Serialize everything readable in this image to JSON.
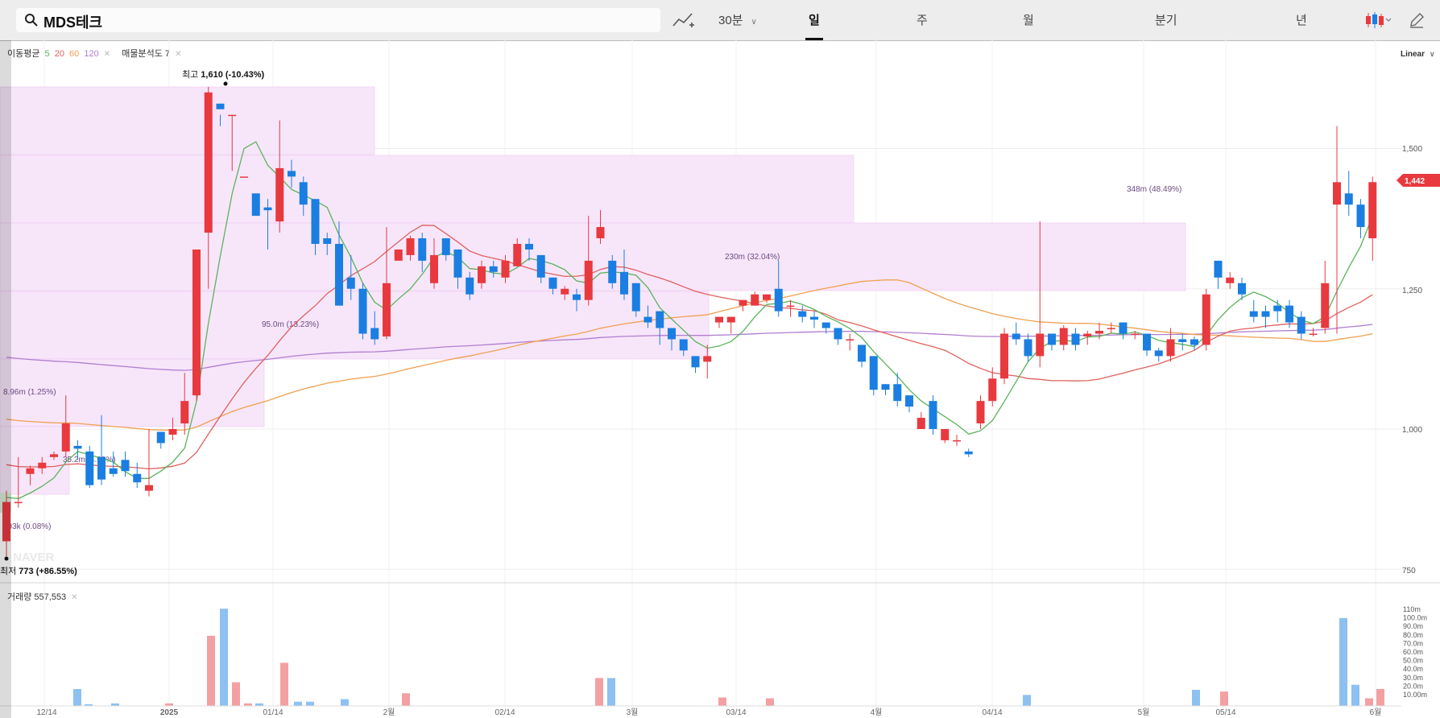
{
  "search": {
    "symbol": "MDS테크"
  },
  "intervals": [
    {
      "label": "30분",
      "active": false
    },
    {
      "label": "일",
      "active": true
    },
    {
      "label": "주",
      "active": false
    },
    {
      "label": "월",
      "active": false
    },
    {
      "label": "분기",
      "active": false
    },
    {
      "label": "년",
      "active": false
    }
  ],
  "indicators": {
    "ma_label": "이동평균",
    "ma_periods": [
      "5",
      "20",
      "60",
      "120"
    ],
    "volume_profile_label": "매물분석도 7",
    "volume_label": "거래량 557,553"
  },
  "scale_mode": "Linear",
  "colors": {
    "up": "#e8393f",
    "down": "#1a7ee2",
    "ma5": "#5bb35b",
    "ma20": "#e0605d",
    "ma60": "#f0a050",
    "ma120": "#b07ed0",
    "profile": "#f7e6fa",
    "vol_up": "#f3a0a3",
    "vol_down": "#8cc1f1"
  },
  "chart_data": {
    "type": "candlestick",
    "x_ticks": [
      "12/14",
      "2025",
      "01/14",
      "2월",
      "02/14",
      "3월",
      "03/14",
      "4월",
      "04/14",
      "5월",
      "05/14",
      "6월"
    ],
    "y_ticks": [
      "1,500",
      "1,250",
      "1,000",
      "750"
    ],
    "last_price": "1,442",
    "high_annotation": {
      "prefix": "최고",
      "value": "1,610",
      "change": "(-10.43%)"
    },
    "low_annotation": {
      "prefix": "최저",
      "value": "773",
      "change": "(+86.55%)"
    },
    "volume_profile_labels": [
      "8.96m (1.25%)",
      "35.2m (4.90%)",
      "95.0m (13.23%)",
      "230m (32.04%)",
      "348m (48.49%)",
      "593k (0.08%)"
    ],
    "volume_ticks": [
      "110m",
      "100.0m",
      "90.0m",
      "80.0m",
      "70.0m",
      "60.0m",
      "50.0m",
      "40.0m",
      "30.0m",
      "20.0m",
      "10.00m"
    ],
    "watermark": "NAVER",
    "candles": [
      [
        800,
        870,
        890,
        773
      ],
      [
        870,
        870,
        950,
        860
      ],
      [
        920,
        930,
        935,
        900
      ],
      [
        930,
        940,
        950,
        920
      ],
      [
        950,
        955,
        960,
        945
      ],
      [
        960,
        1010,
        1060,
        950
      ],
      [
        970,
        965,
        980,
        945
      ],
      [
        960,
        900,
        970,
        895
      ],
      [
        950,
        910,
        1025,
        900
      ],
      [
        930,
        920,
        960,
        915
      ],
      [
        945,
        925,
        960,
        915
      ],
      [
        920,
        905,
        940,
        895
      ],
      [
        890,
        900,
        1000,
        880
      ],
      [
        995,
        975,
        985,
        965
      ],
      [
        990,
        1000,
        1020,
        980
      ],
      [
        1010,
        1050,
        1100,
        990
      ],
      [
        1060,
        1320,
        1320,
        1050
      ],
      [
        1350,
        1600,
        1610,
        1250
      ],
      [
        1580,
        1570,
        1540,
        1560
      ],
      [
        1560,
        1560,
        1560,
        1460
      ],
      [
        1450,
        1450,
        1450,
        1450
      ],
      [
        1420,
        1380,
        1420,
        1390
      ],
      [
        1395,
        1390,
        1410,
        1320
      ],
      [
        1370,
        1465,
        1550,
        1350
      ],
      [
        1460,
        1450,
        1480,
        1430
      ],
      [
        1440,
        1400,
        1450,
        1380
      ],
      [
        1410,
        1330,
        1410,
        1310
      ],
      [
        1340,
        1330,
        1350,
        1310
      ],
      [
        1330,
        1220,
        1370,
        1220
      ],
      [
        1270,
        1250,
        1310,
        1230
      ],
      [
        1250,
        1170,
        1260,
        1160
      ],
      [
        1180,
        1160,
        1210,
        1150
      ],
      [
        1165,
        1260,
        1360,
        1160
      ],
      [
        1300,
        1320,
        1320,
        1310
      ],
      [
        1310,
        1340,
        1345,
        1300
      ],
      [
        1340,
        1300,
        1350,
        1280
      ],
      [
        1260,
        1310,
        1340,
        1250
      ],
      [
        1340,
        1310,
        1340,
        1300
      ],
      [
        1320,
        1270,
        1320,
        1250
      ],
      [
        1270,
        1240,
        1280,
        1230
      ],
      [
        1260,
        1290,
        1300,
        1250
      ],
      [
        1290,
        1280,
        1300,
        1270
      ],
      [
        1270,
        1300,
        1310,
        1260
      ],
      [
        1290,
        1330,
        1340,
        1290
      ],
      [
        1330,
        1320,
        1340,
        1300
      ],
      [
        1310,
        1270,
        1310,
        1260
      ],
      [
        1270,
        1250,
        1270,
        1240
      ],
      [
        1240,
        1250,
        1255,
        1230
      ],
      [
        1240,
        1230,
        1250,
        1210
      ],
      [
        1230,
        1300,
        1380,
        1220
      ],
      [
        1340,
        1360,
        1390,
        1330
      ],
      [
        1300,
        1260,
        1310,
        1250
      ],
      [
        1280,
        1240,
        1320,
        1230
      ],
      [
        1260,
        1210,
        1260,
        1200
      ],
      [
        1200,
        1190,
        1220,
        1180
      ],
      [
        1210,
        1180,
        1210,
        1150
      ],
      [
        1180,
        1160,
        1180,
        1140
      ],
      [
        1160,
        1140,
        1160,
        1130
      ],
      [
        1130,
        1110,
        1130,
        1100
      ],
      [
        1120,
        1130,
        1150,
        1090
      ],
      [
        1190,
        1200,
        1200,
        1180
      ],
      [
        1190,
        1200,
        1200,
        1170
      ],
      [
        1220,
        1230,
        1230,
        1210
      ],
      [
        1220,
        1240,
        1245,
        1220
      ],
      [
        1230,
        1240,
        1240,
        1225
      ],
      [
        1250,
        1210,
        1300,
        1200
      ],
      [
        1220,
        1220,
        1230,
        1200
      ],
      [
        1210,
        1200,
        1220,
        1190
      ],
      [
        1200,
        1195,
        1210,
        1180
      ],
      [
        1190,
        1180,
        1190,
        1170
      ],
      [
        1180,
        1160,
        1180,
        1150
      ],
      [
        1160,
        1160,
        1170,
        1140
      ],
      [
        1150,
        1120,
        1150,
        1110
      ],
      [
        1130,
        1070,
        1130,
        1060
      ],
      [
        1080,
        1070,
        1080,
        1060
      ],
      [
        1080,
        1050,
        1100,
        1040
      ],
      [
        1060,
        1040,
        1060,
        1030
      ],
      [
        1000,
        1020,
        1030,
        1000
      ],
      [
        1050,
        1000,
        1060,
        990
      ],
      [
        980,
        1000,
        1000,
        975
      ],
      [
        980,
        980,
        990,
        970
      ],
      [
        960,
        955,
        965,
        950
      ],
      [
        1010,
        1050,
        1060,
        1000
      ],
      [
        1050,
        1090,
        1110,
        1040
      ],
      [
        1090,
        1170,
        1180,
        1080
      ],
      [
        1170,
        1160,
        1190,
        1150
      ],
      [
        1160,
        1130,
        1170,
        1120
      ],
      [
        1130,
        1170,
        1370,
        1110
      ],
      [
        1170,
        1150,
        1170,
        1140
      ],
      [
        1150,
        1180,
        1185,
        1140
      ],
      [
        1170,
        1150,
        1180,
        1140
      ],
      [
        1165,
        1170,
        1175,
        1150
      ],
      [
        1170,
        1175,
        1190,
        1160
      ],
      [
        1180,
        1180,
        1190,
        1170
      ],
      [
        1190,
        1170,
        1190,
        1160
      ],
      [
        1170,
        1170,
        1175,
        1160
      ],
      [
        1170,
        1140,
        1170,
        1130
      ],
      [
        1140,
        1130,
        1145,
        1120
      ],
      [
        1130,
        1160,
        1180,
        1120
      ],
      [
        1160,
        1155,
        1170,
        1140
      ],
      [
        1160,
        1150,
        1165,
        1140
      ],
      [
        1150,
        1240,
        1250,
        1140
      ],
      [
        1300,
        1270,
        1300,
        1250
      ],
      [
        1260,
        1270,
        1280,
        1250
      ],
      [
        1260,
        1240,
        1270,
        1230
      ],
      [
        1210,
        1200,
        1230,
        1190
      ],
      [
        1210,
        1200,
        1220,
        1180
      ],
      [
        1220,
        1210,
        1230,
        1190
      ],
      [
        1220,
        1190,
        1230,
        1180
      ],
      [
        1200,
        1170,
        1210,
        1160
      ],
      [
        1170,
        1170,
        1180,
        1165
      ],
      [
        1180,
        1260,
        1300,
        1170
      ],
      [
        1400,
        1440,
        1540,
        1170
      ],
      [
        1420,
        1400,
        1460,
        1380
      ],
      [
        1400,
        1360,
        1410,
        1340
      ],
      [
        1340,
        1440,
        1450,
        1300
      ]
    ]
  }
}
